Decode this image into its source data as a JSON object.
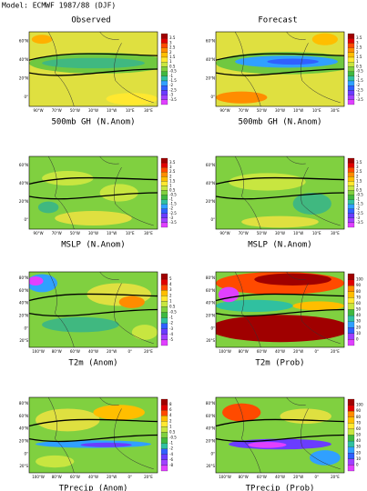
{
  "title": "Model: ECMWF 1987/88 (DJF)",
  "columns": [
    "Observed",
    "Forecast"
  ],
  "panels": [
    {
      "title": "500mb GH (N.Anom)",
      "lat_labels": [
        "60°N",
        "40°N",
        "20°N",
        "0°"
      ],
      "lon_labels": [
        "90°W",
        "70°W",
        "50°W",
        "30°W",
        "10°W",
        "10°E",
        "30°E"
      ],
      "colorbar": [
        "3.5",
        "3",
        "2.5",
        "2",
        "1.5",
        "1",
        "0.5",
        "-0.5",
        "-1",
        "-1.5",
        "-2",
        "-2.5",
        "-3",
        "-3.5"
      ]
    },
    {
      "title": "500mb GH (N.Anom)",
      "lat_labels": [
        "60°N",
        "40°N",
        "20°N",
        "0°"
      ],
      "lon_labels": [
        "90°W",
        "70°W",
        "50°W",
        "30°W",
        "10°W",
        "10°E",
        "30°E"
      ],
      "colorbar": [
        "3.5",
        "3",
        "2.5",
        "2",
        "1.5",
        "1",
        "0.5",
        "-0.5",
        "-1",
        "-1.5",
        "-2",
        "-2.5",
        "-3",
        "-3.5"
      ]
    },
    {
      "title": "MSLP (N.Anom)",
      "lat_labels": [
        "60°N",
        "40°N",
        "20°N",
        "0°"
      ],
      "lon_labels": [
        "90°W",
        "70°W",
        "50°W",
        "30°W",
        "10°W",
        "10°E",
        "30°E"
      ],
      "colorbar": [
        "3.5",
        "3",
        "2.5",
        "2",
        "1.5",
        "1",
        "0.5",
        "-0.5",
        "-1",
        "-1.5",
        "-2",
        "-2.5",
        "-3",
        "-3.5"
      ]
    },
    {
      "title": "MSLP (N.Anom)",
      "lat_labels": [
        "60°N",
        "40°N",
        "20°N",
        "0°"
      ],
      "lon_labels": [
        "90°W",
        "70°W",
        "50°W",
        "30°W",
        "10°W",
        "10°E",
        "30°E"
      ],
      "colorbar": [
        "3.5",
        "3",
        "2.5",
        "2",
        "1.5",
        "1",
        "0.5",
        "-0.5",
        "-1",
        "-1.5",
        "-2",
        "-2.5",
        "-3",
        "-3.5"
      ]
    },
    {
      "title": "T2m (Anom)",
      "lat_labels": [
        "80°N",
        "60°N",
        "40°N",
        "20°N",
        "0°",
        "20°S"
      ],
      "lon_labels": [
        "100°W",
        "80°W",
        "60°W",
        "40°W",
        "20°W",
        "0°",
        "20°E"
      ],
      "colorbar": [
        "5",
        "4",
        "3",
        "2",
        "1",
        "0.5",
        "-0.5",
        "-1",
        "-2",
        "-3",
        "-4",
        "-5"
      ]
    },
    {
      "title": "T2m (Prob)",
      "lat_labels": [
        "80°N",
        "60°N",
        "40°N",
        "20°N",
        "0°",
        "20°S"
      ],
      "lon_labels": [
        "100°W",
        "80°W",
        "60°W",
        "40°W",
        "20°W",
        "0°",
        "20°E"
      ],
      "colorbar": [
        "100",
        "90",
        "80",
        "70",
        "60",
        "50",
        "40",
        "30",
        "20",
        "10",
        "0"
      ]
    },
    {
      "title": "TPrecip (Anom)",
      "lat_labels": [
        "80°N",
        "60°N",
        "40°N",
        "20°N",
        "0°",
        "20°S"
      ],
      "lon_labels": [
        "100°W",
        "80°W",
        "60°W",
        "40°W",
        "20°W",
        "0°",
        "20°E"
      ],
      "colorbar": [
        "8",
        "6",
        "4",
        "2",
        "1",
        "0.5",
        "-0.5",
        "-1",
        "-2",
        "-4",
        "-6",
        "-8"
      ]
    },
    {
      "title": "TPrecip (Prob)",
      "lat_labels": [
        "80°N",
        "60°N",
        "40°N",
        "20°N",
        "0°",
        "20°S"
      ],
      "lon_labels": [
        "100°W",
        "80°W",
        "60°W",
        "40°W",
        "20°W",
        "0°",
        "20°E"
      ],
      "colorbar": [
        "100",
        "90",
        "80",
        "70",
        "60",
        "50",
        "40",
        "30",
        "20",
        "10",
        "0"
      ]
    }
  ]
}
